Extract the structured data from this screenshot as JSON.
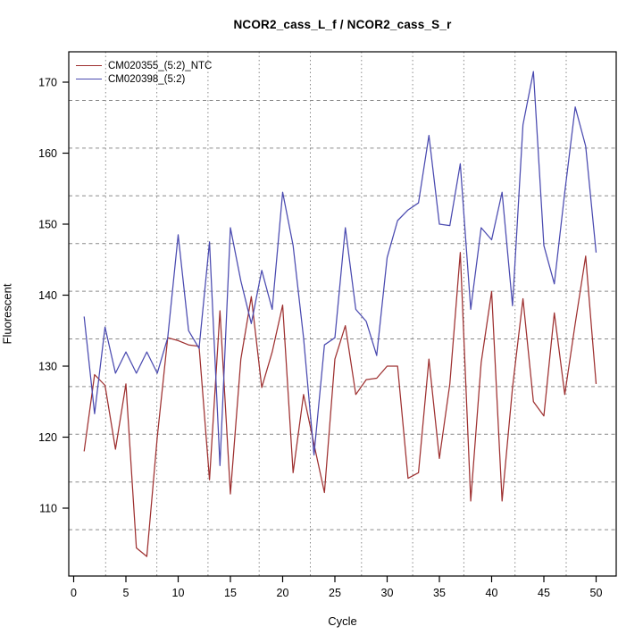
{
  "title": "NCOR2_cass_L_f / NCOR2_cass_S_r",
  "axes": {
    "xlabel": "Cycle",
    "ylabel": "Fluorescent",
    "x_ticks": [
      0,
      5,
      10,
      15,
      20,
      25,
      30,
      35,
      40,
      45,
      50
    ],
    "y_ticks": [
      110,
      120,
      130,
      140,
      150,
      160,
      170
    ]
  },
  "legend": {
    "items": [
      {
        "label": "CM020355_(5:2)_NTC",
        "color": "#9E3030"
      },
      {
        "label": "CM020398_(5:2)",
        "color": "#4A4AB0"
      }
    ],
    "position": "top-left"
  },
  "colors": {
    "red_series": "#9E3030",
    "blue_series": "#4A4AB0",
    "grid": "#8a8a8a",
    "axis": "#000000"
  },
  "chart_data": {
    "type": "line",
    "title": "NCOR2_cass_L_f / NCOR2_cass_S_r",
    "xlabel": "Cycle",
    "ylabel": "Fluorescent",
    "xlim": [
      0,
      50
    ],
    "ylim": [
      103,
      172
    ],
    "grid": "vertical dotted and horizontal dashed gray lines, offset from ticks",
    "legend_position": "top-left",
    "x": [
      1,
      2,
      3,
      4,
      5,
      6,
      7,
      8,
      9,
      10,
      11,
      12,
      13,
      14,
      15,
      16,
      17,
      18,
      19,
      20,
      21,
      22,
      23,
      24,
      25,
      26,
      27,
      28,
      29,
      30,
      31,
      32,
      33,
      34,
      35,
      36,
      37,
      38,
      39,
      40,
      41,
      42,
      43,
      44,
      45,
      46,
      47,
      48,
      49,
      50
    ],
    "series": [
      {
        "name": "CM020355_(5:2)_NTC",
        "color": "#9E3030",
        "values": [
          118,
          128.8,
          127.3,
          118.3,
          127.5,
          104.4,
          103.2,
          120,
          134,
          133.6,
          133,
          132.8,
          114,
          137.8,
          112,
          131,
          139.8,
          127,
          132,
          138.6,
          115,
          126,
          119,
          112.2,
          131,
          135.7,
          126,
          128.1,
          128.3,
          130,
          130,
          114.2,
          115,
          131,
          117,
          127.5,
          146,
          111,
          130.5,
          140.5,
          111,
          127,
          139.5,
          125,
          123,
          137.5,
          126,
          136,
          145.5,
          127.5
        ]
      },
      {
        "name": "CM020398_(5:2)",
        "color": "#4A4AB0",
        "values": [
          137,
          123.3,
          135.5,
          129,
          132,
          129,
          132,
          129,
          134,
          148.5,
          135,
          132.5,
          147.5,
          116,
          149.5,
          142,
          136,
          143.5,
          138,
          154.5,
          147,
          134,
          117.5,
          133,
          134,
          149.5,
          138,
          136.3,
          131.5,
          145.3,
          150.5,
          152,
          153,
          162.5,
          150,
          149.8,
          158.5,
          138,
          149.5,
          147.8,
          154.5,
          138.5,
          164,
          171.5,
          147,
          141.6,
          154.5,
          166.5,
          161,
          146
        ]
      }
    ]
  }
}
